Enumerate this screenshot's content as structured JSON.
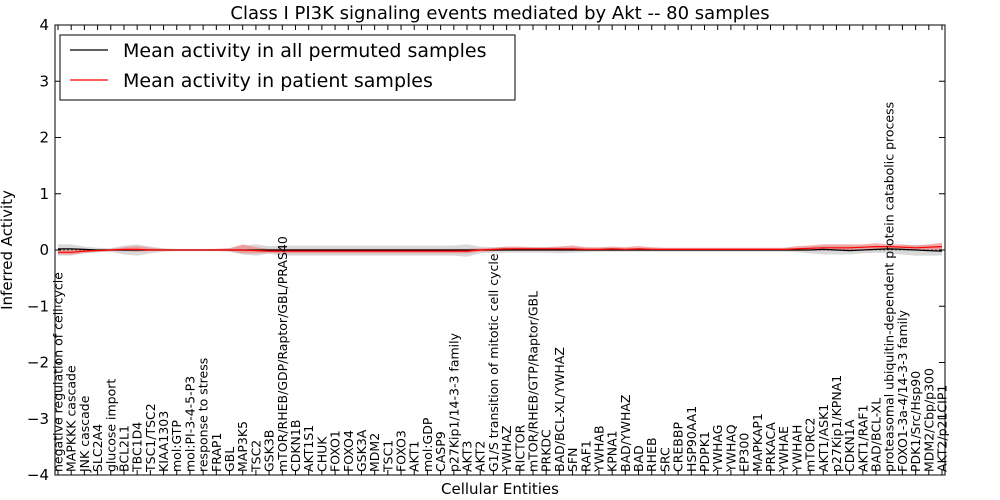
{
  "chart_data": {
    "type": "line",
    "title": "Class I PI3K signaling events mediated by Akt -- 80 samples",
    "xlabel": "Cellular Entities",
    "ylabel": "Inferred Activity",
    "ylim": [
      -4,
      4
    ],
    "yticks": [
      -4,
      -3,
      -2,
      -1,
      0,
      1,
      2,
      3,
      4
    ],
    "ytick_labels": [
      "−4",
      "−3",
      "−2",
      "−1",
      "0",
      "1",
      "2",
      "3",
      "4"
    ],
    "legend_position": "top-left",
    "legend": [
      "Mean activity in all permuted samples",
      "Mean activity in patient samples"
    ],
    "categories": [
      "negative regulation of cell cycle",
      "MAPKKK cascade",
      "JNK cascade",
      "SLC2A4",
      "glucose import",
      "BCL2L1",
      "TBC1D4",
      "TSC1/TSC2",
      "KIAA1303",
      "mol:GTP",
      "mol:PI-3-4-5-P3",
      "response to stress",
      "FRAP1",
      "GBL",
      "MAP3K5",
      "TSC2",
      "GSK3B",
      "mTOR/RHEB/GDP/Raptor/GBL/PRAS40",
      "CDKN1B",
      "AKT1S1",
      "CHUK",
      "FOXO1",
      "FOXO4",
      "GSK3A",
      "MDM2",
      "TSC1",
      "FOXO3",
      "AKT1",
      "mol:GDP",
      "CASP9",
      "p27Kip1/14-3-3 family",
      "AKT3",
      "AKT2",
      "G1/S transition of mitotic cell cycle",
      "YWHAZ",
      "RICTOR",
      "mTOR/RHEB/GTP/Raptor/GBL",
      "PRKDC",
      "BAD/BCL-XL/YWHAZ",
      "SFN",
      "RAF1",
      "YWHAB",
      "KPNA1",
      "BAD/YWHAZ",
      "BAD",
      "RHEB",
      "SRC",
      "CREBBP",
      "HSP90AA1",
      "PDPK1",
      "YWHAG",
      "YWHAQ",
      "EP300",
      "MAPKAP1",
      "PRKACA",
      "YWHAE",
      "YWHAH",
      "mTORC2",
      "AKT1/ASK1",
      "p27Kip1/KPNA1",
      "CDKN1A",
      "AKT1/RAF1",
      "BAD/BCL-XL",
      "proteasomal ubiquitin-dependent protein catabolic process",
      "FOXO1-3a-4/14-3-3 family",
      "PDK1/Src/Hsp90",
      "MDM2/Cbp/p300",
      "AKT2/p21CIP1"
    ],
    "series": [
      {
        "name": "Mean activity in all permuted samples",
        "color": "#000000",
        "band_color": "#bfbfbf",
        "values": [
          0.02,
          0.02,
          0.01,
          0.0,
          0.0,
          0.0,
          0.0,
          0.0,
          0.0,
          0.0,
          0.0,
          0.0,
          0.0,
          0.0,
          0.0,
          0.0,
          0.0,
          0.0,
          0.0,
          0.0,
          0.0,
          0.0,
          0.0,
          0.0,
          0.0,
          0.0,
          0.0,
          0.0,
          0.0,
          0.0,
          0.0,
          0.0,
          0.0,
          0.0,
          0.0,
          0.0,
          0.0,
          0.0,
          0.0,
          0.0,
          0.0,
          0.0,
          0.0,
          0.0,
          0.0,
          0.0,
          0.0,
          0.0,
          0.0,
          0.0,
          0.0,
          0.0,
          0.0,
          0.0,
          0.0,
          0.0,
          0.0,
          0.0,
          0.01,
          0.0,
          -0.01,
          0.0,
          0.01,
          0.02,
          0.01,
          0.0,
          -0.01,
          -0.02
        ],
        "lower": [
          -0.1,
          -0.1,
          -0.06,
          -0.04,
          -0.03,
          -0.08,
          -0.1,
          -0.06,
          -0.03,
          -0.02,
          -0.02,
          -0.02,
          -0.02,
          -0.03,
          -0.08,
          -0.1,
          -0.07,
          -0.1,
          -0.1,
          -0.1,
          -0.1,
          -0.1,
          -0.1,
          -0.1,
          -0.1,
          -0.1,
          -0.1,
          -0.1,
          -0.1,
          -0.1,
          -0.1,
          -0.12,
          -0.06,
          -0.05,
          -0.05,
          -0.05,
          -0.05,
          -0.05,
          -0.06,
          -0.05,
          -0.04,
          -0.03,
          -0.03,
          -0.03,
          -0.03,
          -0.03,
          -0.03,
          -0.03,
          -0.03,
          -0.03,
          -0.03,
          -0.03,
          -0.03,
          -0.03,
          -0.03,
          -0.03,
          -0.04,
          -0.06,
          -0.08,
          -0.08,
          -0.08,
          -0.06,
          -0.05,
          -0.06,
          -0.08,
          -0.1,
          -0.1,
          -0.1
        ],
        "upper": [
          0.1,
          0.1,
          0.06,
          0.04,
          0.03,
          0.08,
          0.1,
          0.06,
          0.03,
          0.02,
          0.02,
          0.02,
          0.02,
          0.03,
          0.08,
          0.1,
          0.07,
          0.08,
          0.08,
          0.08,
          0.08,
          0.08,
          0.08,
          0.08,
          0.08,
          0.08,
          0.08,
          0.08,
          0.08,
          0.08,
          0.08,
          0.1,
          0.06,
          0.05,
          0.05,
          0.05,
          0.05,
          0.05,
          0.06,
          0.05,
          0.04,
          0.03,
          0.03,
          0.03,
          0.03,
          0.03,
          0.03,
          0.03,
          0.03,
          0.03,
          0.03,
          0.03,
          0.03,
          0.03,
          0.03,
          0.03,
          0.04,
          0.06,
          0.08,
          0.08,
          0.08,
          0.06,
          0.06,
          0.06,
          0.08,
          0.09,
          0.08,
          0.08
        ]
      },
      {
        "name": "Mean activity in patient samples",
        "color": "#ff0000",
        "band_color": "#f08080",
        "values": [
          -0.04,
          -0.04,
          -0.02,
          -0.01,
          0.0,
          0.01,
          0.01,
          0.0,
          0.0,
          0.0,
          0.0,
          0.0,
          0.0,
          0.0,
          0.0,
          -0.01,
          -0.02,
          -0.02,
          -0.02,
          -0.02,
          -0.02,
          -0.02,
          -0.02,
          -0.02,
          -0.02,
          -0.02,
          -0.02,
          -0.02,
          -0.02,
          -0.02,
          -0.02,
          -0.02,
          0.0,
          0.01,
          0.02,
          0.02,
          0.02,
          0.02,
          0.02,
          0.02,
          0.01,
          0.01,
          0.02,
          0.01,
          0.02,
          0.01,
          0.01,
          0.01,
          0.01,
          0.01,
          0.01,
          0.01,
          0.01,
          0.01,
          0.01,
          0.01,
          0.02,
          0.03,
          0.04,
          0.04,
          0.04,
          0.05,
          0.06,
          0.06,
          0.05,
          0.04,
          0.05,
          0.06
        ],
        "lower": [
          -0.08,
          -0.08,
          -0.05,
          -0.03,
          -0.02,
          -0.02,
          -0.03,
          -0.02,
          -0.01,
          -0.01,
          -0.01,
          -0.01,
          -0.01,
          -0.02,
          -0.06,
          -0.06,
          -0.05,
          -0.06,
          -0.06,
          -0.06,
          -0.06,
          -0.06,
          -0.06,
          -0.06,
          -0.06,
          -0.06,
          -0.06,
          -0.06,
          -0.06,
          -0.06,
          -0.06,
          -0.06,
          -0.03,
          -0.02,
          -0.01,
          -0.01,
          -0.01,
          -0.01,
          -0.01,
          -0.01,
          -0.01,
          -0.01,
          -0.01,
          -0.01,
          -0.01,
          -0.01,
          -0.01,
          -0.01,
          -0.01,
          -0.01,
          -0.01,
          -0.01,
          -0.01,
          -0.01,
          -0.01,
          -0.01,
          -0.01,
          0.0,
          0.0,
          0.0,
          0.0,
          0.01,
          0.02,
          0.02,
          0.01,
          0.0,
          0.0,
          0.0
        ],
        "upper": [
          0.0,
          0.0,
          0.01,
          0.01,
          0.02,
          0.05,
          0.07,
          0.04,
          0.02,
          0.01,
          0.01,
          0.01,
          0.02,
          0.03,
          0.1,
          0.05,
          0.02,
          0.02,
          0.02,
          0.02,
          0.02,
          0.02,
          0.02,
          0.02,
          0.02,
          0.02,
          0.02,
          0.02,
          0.02,
          0.02,
          0.02,
          0.02,
          0.03,
          0.04,
          0.06,
          0.06,
          0.05,
          0.05,
          0.06,
          0.08,
          0.05,
          0.05,
          0.06,
          0.05,
          0.07,
          0.05,
          0.04,
          0.04,
          0.04,
          0.04,
          0.04,
          0.04,
          0.04,
          0.04,
          0.04,
          0.04,
          0.07,
          0.08,
          0.1,
          0.1,
          0.1,
          0.1,
          0.12,
          0.1,
          0.1,
          0.08,
          0.1,
          0.13
        ]
      }
    ]
  }
}
